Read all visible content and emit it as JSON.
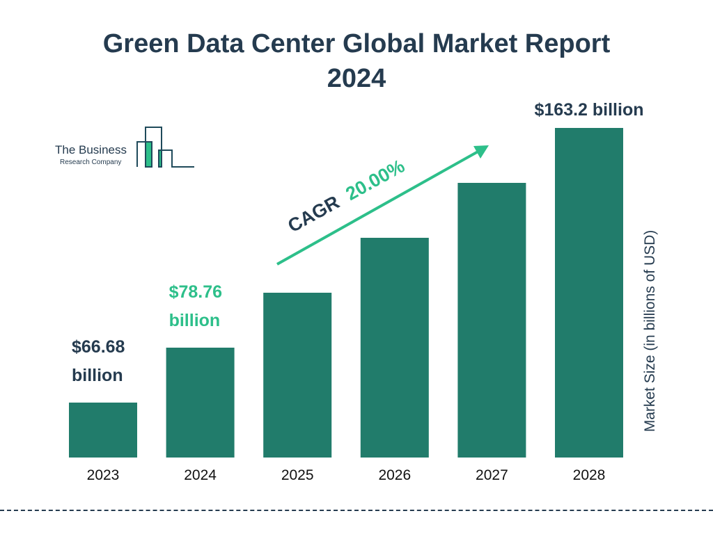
{
  "title_line1": "Green Data Center Global Market Report",
  "title_line2": "2024",
  "logo": {
    "line1": "The Business",
    "line2": "Research Company"
  },
  "colors": {
    "bar": "#217c6b",
    "accent": "#2dbf8a",
    "text": "#253b4f"
  },
  "chart_data": {
    "type": "bar",
    "categories": [
      "2023",
      "2024",
      "2025",
      "2026",
      "2027",
      "2028"
    ],
    "values": [
      66.68,
      78.76,
      94.51,
      113.41,
      136.1,
      163.2
    ],
    "data_labels": [
      {
        "index": 0,
        "line1": "$66.68",
        "line2": "billion"
      },
      {
        "index": 1,
        "line1": "$78.76",
        "line2": "billion"
      },
      {
        "index": 5,
        "line1": "$163.2 billion",
        "line2": ""
      }
    ],
    "ylabel": "Market Size (in billions of USD)",
    "annotation": {
      "label": "CAGR",
      "value": "20.00%"
    },
    "grid": false
  }
}
